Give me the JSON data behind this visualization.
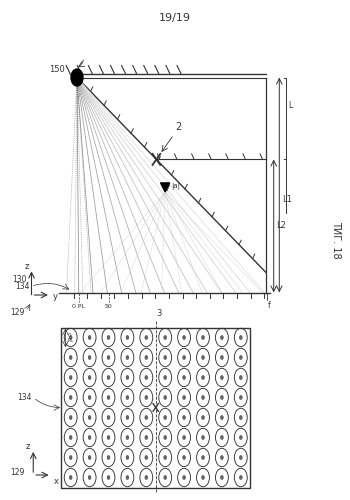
{
  "title": "19/19",
  "fig_label": "ΤИГ. 18",
  "bg_color": "#ffffff",
  "line_color": "#333333",
  "gray_line_color": "#888888",
  "light_gray": "#aaaaaa",
  "num_rays": 14,
  "label_150": "150",
  "label_2": "2",
  "label_130": "130",
  "label_134": "134",
  "label_129": "129",
  "label_L1": "L1",
  "label_L2": "L2",
  "label_50": "50",
  "label_0_PL": "0 PL",
  "label_3": "3",
  "label_a": "a",
  "label_FIG": "ΤИГ. 18"
}
